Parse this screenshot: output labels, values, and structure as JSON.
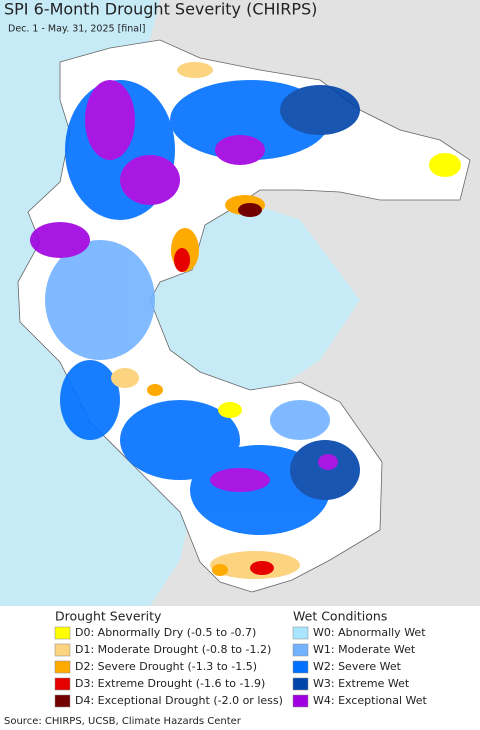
{
  "header": {
    "title": "SPI 6-Month Drought Severity (CHIRPS)",
    "subtitle": "Dec. 1 - May. 31, 2025 [final]"
  },
  "legend": {
    "drought": {
      "title": "Drought Severity",
      "items": [
        {
          "label": "D0: Abnormally Dry (-0.5 to -0.7)",
          "color": "#ffff00"
        },
        {
          "label": "D1: Moderate Drought (-0.8 to -1.2)",
          "color": "#fcd37f"
        },
        {
          "label": "D2: Severe Drought (-1.3 to -1.5)",
          "color": "#ffaa00"
        },
        {
          "label": "D3: Extreme Drought (-1.6 to -1.9)",
          "color": "#e60000"
        },
        {
          "label": "D4: Exceptional Drought (-2.0 or less)",
          "color": "#730000"
        }
      ]
    },
    "wet": {
      "title": "Wet Conditions",
      "items": [
        {
          "label": "W0: Abnormally Wet",
          "color": "#aae5ff"
        },
        {
          "label": "W1: Moderate Wet",
          "color": "#73b2ff"
        },
        {
          "label": "W2: Severe Wet",
          "color": "#0070ff"
        },
        {
          "label": "W3: Extreme Wet",
          "color": "#0044aa"
        },
        {
          "label": "W4: Exceptional Wet",
          "color": "#a000e0"
        }
      ]
    }
  },
  "footer": {
    "source": "Source: CHIRPS, UCSB, Climate Hazards Center"
  }
}
